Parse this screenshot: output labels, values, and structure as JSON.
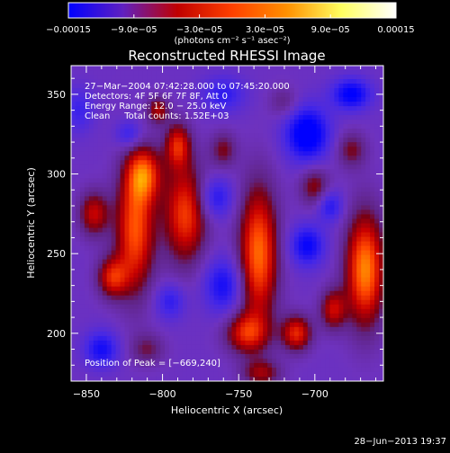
{
  "chart_data": {
    "type": "heatmap",
    "title": "Reconstructed RHESSI Image",
    "xlabel": "Heliocentric X (arcsec)",
    "ylabel": "Heliocentric Y (arcsec)",
    "xlim": [
      -860,
      -655
    ],
    "ylim": [
      170,
      368
    ],
    "x_ticks": [
      -850,
      -800,
      -750,
      -700
    ],
    "y_ticks": [
      200,
      250,
      300,
      350
    ],
    "x_tick_labels": [
      "−850",
      "−800",
      "−750",
      "−700"
    ],
    "y_tick_labels": [
      "200",
      "250",
      "300",
      "350"
    ],
    "colorbar": {
      "range": [
        -0.00015,
        0.00015
      ],
      "ticks": [
        -0.00015,
        -9e-05,
        -3e-05,
        3e-05,
        9e-05,
        0.00015
      ],
      "tick_labels": [
        "−0.00015",
        "−9.0e−05",
        "−3.0e−05",
        "3.0e−05",
        "9.0e−05",
        "0.00015"
      ],
      "units_label": "(photons cm⁻² s⁻¹ asec⁻²)",
      "colors": [
        "#0000ff",
        "#6020c0",
        "#c00000",
        "#ff4000",
        "#ff9000",
        "#ffff60",
        "#ffffff"
      ]
    },
    "annotations": [
      "27−Mar−2004 07:42:28.000 to 07:45:20.000",
      "Detectors: 4F 5F 6F 7F 8F, Att 0",
      "Energy Range: 12.0 − 25.0 keV",
      "Clean     Total counts: 1.52E+03"
    ],
    "peak_label": "Position of Peak = [−669,240]",
    "peak": {
      "x": -669,
      "y": 240
    },
    "blobs": [
      {
        "x": -818,
        "y": 265,
        "sx": 9,
        "sy": 28,
        "amp": 0.00013
      },
      {
        "x": -812,
        "y": 300,
        "sx": 8,
        "sy": 12,
        "amp": 0.00011
      },
      {
        "x": -833,
        "y": 235,
        "sx": 7,
        "sy": 9,
        "amp": 0.0001
      },
      {
        "x": -845,
        "y": 275,
        "sx": 7,
        "sy": 10,
        "amp": 9e-05
      },
      {
        "x": -785,
        "y": 275,
        "sx": 10,
        "sy": 22,
        "amp": 0.00012
      },
      {
        "x": -790,
        "y": 318,
        "sx": 6,
        "sy": 10,
        "amp": 0.0001
      },
      {
        "x": -803,
        "y": 340,
        "sx": 5,
        "sy": 6,
        "amp": 8e-05
      },
      {
        "x": -737,
        "y": 250,
        "sx": 9,
        "sy": 30,
        "amp": 0.00014
      },
      {
        "x": -745,
        "y": 200,
        "sx": 10,
        "sy": 9,
        "amp": 0.0001
      },
      {
        "x": -735,
        "y": 175,
        "sx": 9,
        "sy": 6,
        "amp": 7e-05
      },
      {
        "x": -712,
        "y": 200,
        "sx": 7,
        "sy": 8,
        "amp": 0.00011
      },
      {
        "x": -688,
        "y": 215,
        "sx": 6,
        "sy": 9,
        "amp": 9e-05
      },
      {
        "x": -667,
        "y": 240,
        "sx": 9,
        "sy": 25,
        "amp": 0.00015
      },
      {
        "x": -700,
        "y": 292,
        "sx": 7,
        "sy": 9,
        "amp": 7e-05
      },
      {
        "x": -676,
        "y": 315,
        "sx": 7,
        "sy": 8,
        "amp": 6e-05
      },
      {
        "x": -760,
        "y": 315,
        "sx": 6,
        "sy": 8,
        "amp": 6e-05
      },
      {
        "x": -810,
        "y": 190,
        "sx": 8,
        "sy": 7,
        "amp": 5e-05
      },
      {
        "x": -720,
        "y": 345,
        "sx": 7,
        "sy": 7,
        "amp": 4e-05
      },
      {
        "x": -705,
        "y": 325,
        "sx": 10,
        "sy": 12,
        "amp": -0.00012
      },
      {
        "x": -676,
        "y": 350,
        "sx": 9,
        "sy": 7,
        "amp": -0.0001
      },
      {
        "x": -705,
        "y": 255,
        "sx": 8,
        "sy": 9,
        "amp": -9e-05
      },
      {
        "x": -760,
        "y": 230,
        "sx": 9,
        "sy": 12,
        "amp": -8e-05
      },
      {
        "x": -765,
        "y": 285,
        "sx": 8,
        "sy": 9,
        "amp": -7e-05
      },
      {
        "x": -840,
        "y": 190,
        "sx": 8,
        "sy": 8,
        "amp": -8e-05
      },
      {
        "x": -795,
        "y": 220,
        "sx": 7,
        "sy": 8,
        "amp": -6e-05
      },
      {
        "x": -822,
        "y": 325,
        "sx": 6,
        "sy": 6,
        "amp": -6e-05
      },
      {
        "x": -760,
        "y": 350,
        "sx": 10,
        "sy": 8,
        "amp": -6e-05
      },
      {
        "x": -690,
        "y": 280,
        "sx": 6,
        "sy": 7,
        "amp": -7e-05
      },
      {
        "x": -855,
        "y": 340,
        "sx": 7,
        "sy": 10,
        "amp": -5e-05
      }
    ]
  },
  "footer": {
    "timestamp": "28−Jun−2013 19:37"
  }
}
